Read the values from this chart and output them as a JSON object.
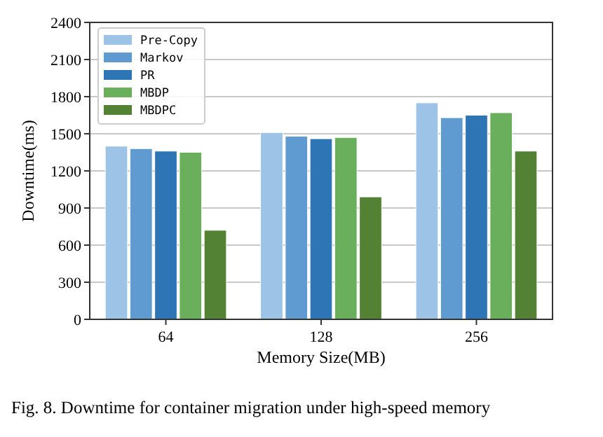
{
  "chart_data": {
    "type": "bar",
    "xlabel": "Memory Size(MB)",
    "ylabel": "Downtime(ms)",
    "categories": [
      "64",
      "128",
      "256"
    ],
    "series": [
      {
        "name": "Pre-Copy",
        "color": "#9dc3e6",
        "values": [
          1400,
          1510,
          1750
        ]
      },
      {
        "name": "Markov",
        "color": "#5f9bd0",
        "values": [
          1380,
          1480,
          1630
        ]
      },
      {
        "name": "PR",
        "color": "#2e75b6",
        "values": [
          1360,
          1460,
          1650
        ]
      },
      {
        "name": "MBDP",
        "color": "#6aaf5c",
        "values": [
          1350,
          1470,
          1670
        ]
      },
      {
        "name": "MBDPC",
        "color": "#548235",
        "values": [
          720,
          990,
          1360
        ]
      }
    ],
    "ylim": [
      0,
      2400
    ],
    "yticks": [
      0,
      300,
      600,
      900,
      1200,
      1500,
      1800,
      2100,
      2400
    ],
    "grid": "y",
    "legend": "top left",
    "annotations": [
      "Fig. 8.  Downtime for container migration under high-speed memory"
    ]
  }
}
